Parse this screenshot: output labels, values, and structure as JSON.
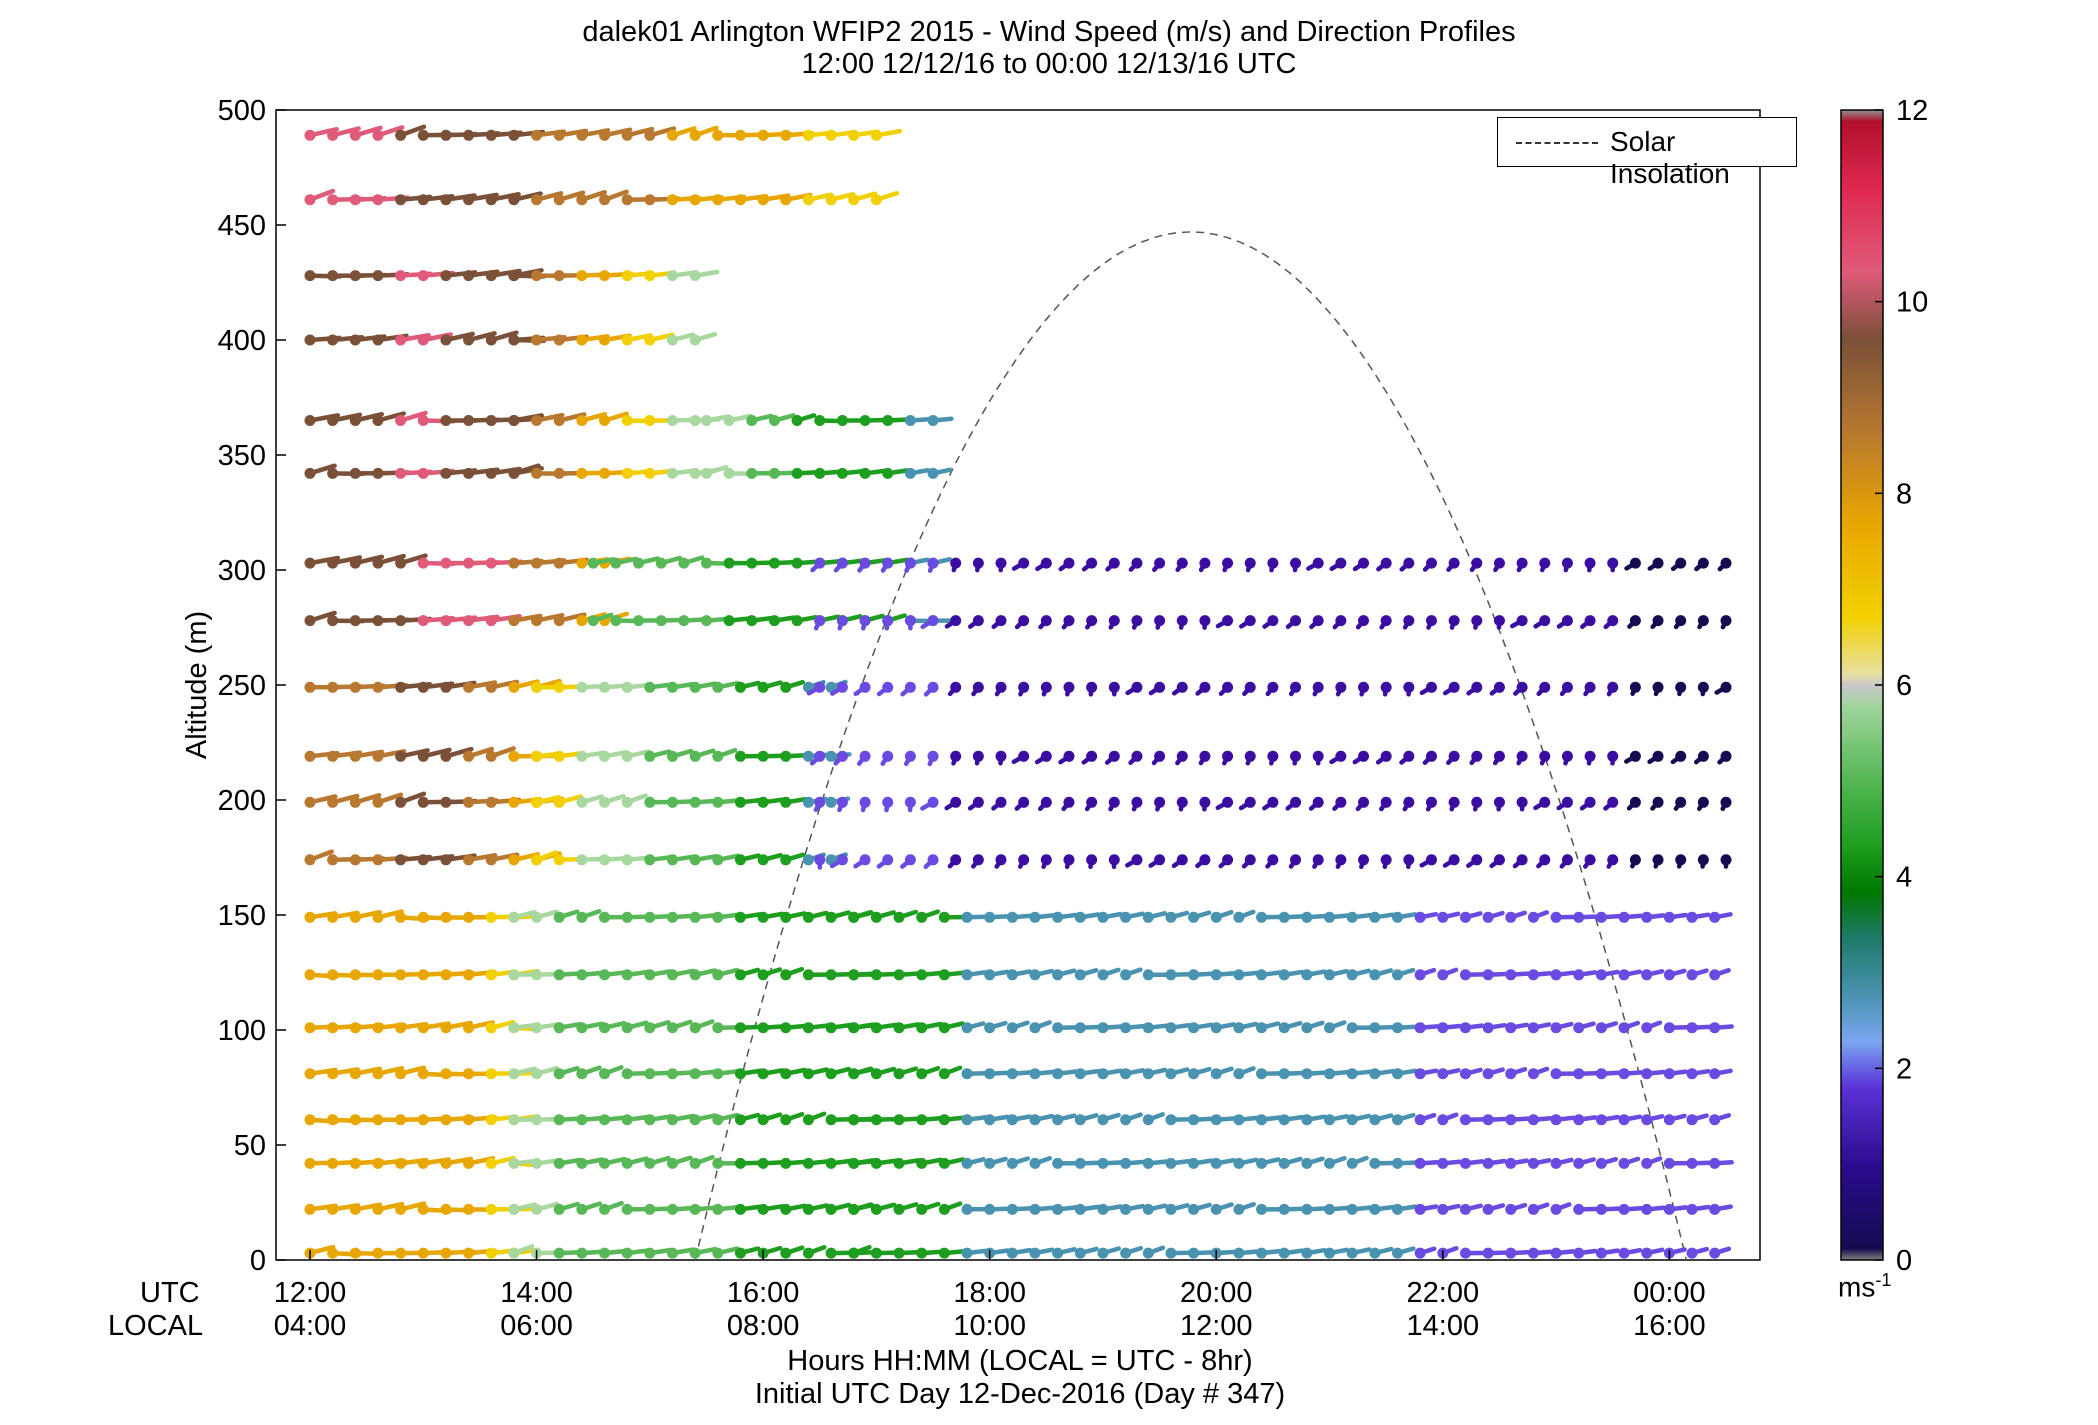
{
  "header": {
    "title_line1": "dalek01 Arlington WFIP2 2015 - Wind Speed (m/s) and Direction Profiles",
    "title_line2": "12:00 12/12/16 to 00:00 12/13/16  UTC"
  },
  "footer": {
    "xlabel_line1": "Hours HH:MM  (LOCAL = UTC - 8hr)",
    "xlabel_line2": "Initial UTC Day 12-Dec-2016 (Day # 347)",
    "row_label_utc": "UTC",
    "row_label_local": "LOCAL"
  },
  "chart_data": {
    "type": "wind-barb profile",
    "ylabel": "Altitude (m)",
    "ylim": [
      0,
      500
    ],
    "y_ticks": [
      "0",
      "50",
      "100",
      "150",
      "200",
      "250",
      "300",
      "350",
      "400",
      "450",
      "500"
    ],
    "xlim_utc_hours": [
      11.7,
      24.8
    ],
    "x_ticks_utc": [
      "12:00",
      "14:00",
      "16:00",
      "18:00",
      "20:00",
      "22:00",
      "00:00"
    ],
    "x_ticks_local": [
      "04:00",
      "06:00",
      "08:00",
      "10:00",
      "12:00",
      "14:00",
      "16:00"
    ],
    "legend": {
      "entry": "Solar Insolation",
      "placement": "top-right"
    },
    "colorbar": {
      "unit_base": "ms",
      "unit_exp": "-1",
      "range": [
        0,
        12
      ],
      "ticks": [
        "0",
        "2",
        "4",
        "6",
        "8",
        "10",
        "12"
      ]
    },
    "solar_insolation": {
      "peak_utc_hour": 19.8,
      "peak_altitude": 447,
      "start_utc_hour": 15.4,
      "end_utc_hour": 24.15
    },
    "altitude_levels": [
      3,
      22,
      42,
      61,
      81,
      101,
      124,
      149,
      174,
      199,
      219,
      249,
      278,
      303,
      342,
      365,
      400,
      428,
      461,
      489
    ],
    "time_step_hours": 0.2,
    "profiles": [
      {
        "y_range": [
          460,
          500
        ],
        "x_range": [
          12.0,
          17.0
        ],
        "speed": [
          11,
          10,
          9,
          8,
          7
        ],
        "dir": 70
      },
      {
        "y_range": [
          330,
          460
        ],
        "x_range": [
          12.0,
          13.8
        ],
        "speed": [
          10,
          10,
          11,
          10,
          10
        ],
        "dir": 75
      },
      {
        "y_range": [
          330,
          460
        ],
        "x_range": [
          13.8,
          15.5
        ],
        "speed": [
          10,
          9,
          8,
          7,
          6
        ],
        "dir": 75
      },
      {
        "y_range": [
          330,
          400
        ],
        "x_range": [
          15.5,
          17.5
        ],
        "speed": [
          6,
          5,
          4,
          4,
          3
        ],
        "dir": 75
      },
      {
        "y_range": [
          260,
          330
        ],
        "x_range": [
          12.0,
          14.5
        ],
        "speed": [
          10,
          10,
          11,
          9,
          8
        ],
        "dir": 75
      },
      {
        "y_range": [
          260,
          330
        ],
        "x_range": [
          14.5,
          17.5
        ],
        "speed": [
          5,
          5,
          4,
          4,
          3
        ],
        "dir": 75
      },
      {
        "y_range": [
          160,
          260
        ],
        "x_range": [
          12.0,
          14.0
        ],
        "speed": [
          9,
          9,
          10,
          9,
          8
        ],
        "dir": 70
      },
      {
        "y_range": [
          160,
          260
        ],
        "x_range": [
          14.0,
          16.5
        ],
        "speed": [
          7,
          6,
          5,
          4,
          3
        ],
        "dir": 70
      },
      {
        "y_range": [
          0,
          160
        ],
        "x_range": [
          12.0,
          13.8
        ],
        "speed": [
          8,
          8,
          8,
          8,
          7
        ],
        "dir": 80
      },
      {
        "y_range": [
          0,
          160
        ],
        "x_range": [
          13.8,
          16.8
        ],
        "speed": [
          6,
          5,
          5,
          4,
          4
        ],
        "dir": 70
      },
      {
        "y_range": [
          160,
          320
        ],
        "x_range": [
          16.5,
          24.6
        ],
        "speed": [
          2,
          1,
          1,
          1,
          0.5
        ],
        "dir": 200
      },
      {
        "y_range": [
          0,
          160
        ],
        "x_range": [
          16.8,
          24.6
        ],
        "speed": [
          4,
          3,
          3,
          2,
          2
        ],
        "dir": 70
      }
    ]
  }
}
